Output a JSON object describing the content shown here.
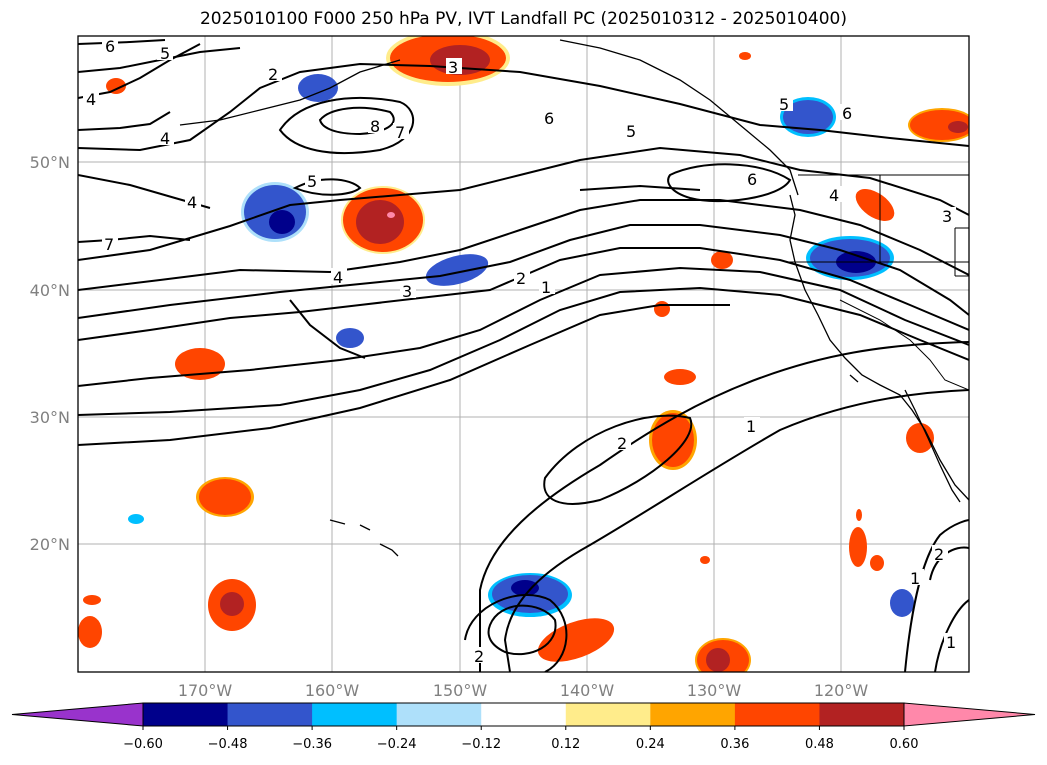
{
  "title": "2025010100 F000 250 hPa PV, IVT Landfall PC (2025010312 - 2025010400)",
  "map": {
    "lon_labels": [
      "170°W",
      "160°W",
      "150°W",
      "140°W",
      "130°W",
      "120°W"
    ],
    "lat_labels": [
      "50°N",
      "40°N",
      "30°N",
      "20°N"
    ],
    "gridlines": true,
    "contour_labels": [
      "6",
      "5",
      "4",
      "2",
      "3",
      "8",
      "7",
      "4",
      "6",
      "5",
      "6",
      "5",
      "6",
      "5",
      "4",
      "7",
      "5",
      "4",
      "3",
      "2",
      "1",
      "4",
      "3",
      "2",
      "1",
      "2",
      "1",
      "2",
      "1",
      "2",
      "1",
      "2"
    ]
  },
  "colorbar": {
    "ticks": [
      "−0.60",
      "−0.48",
      "−0.36",
      "−0.24",
      "−0.12",
      "0.12",
      "0.24",
      "0.36",
      "0.48",
      "0.60"
    ],
    "colors": [
      "#9933cc",
      "#00008b",
      "#3355cc",
      "#00bfff",
      "#aee0fa",
      "#ffffff",
      "#ffec8b",
      "#ffa500",
      "#ff4500",
      "#b22222",
      "#ff88aa"
    ],
    "extend": "both"
  }
}
